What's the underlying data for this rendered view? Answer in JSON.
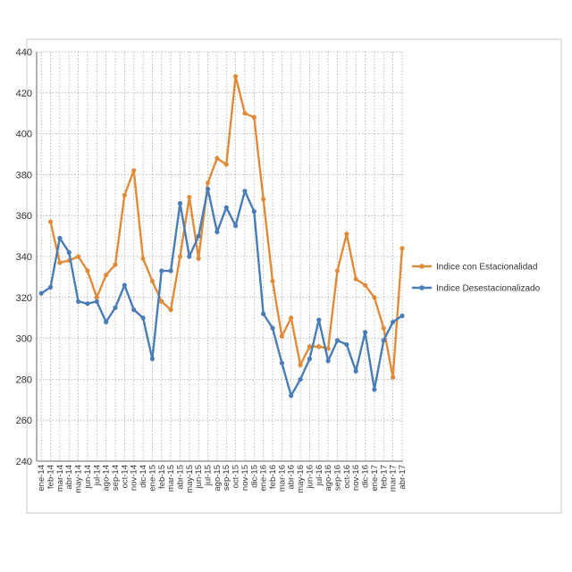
{
  "chart_data": {
    "type": "line",
    "title": "",
    "xlabel": "",
    "ylabel": "",
    "ylim": [
      240,
      440
    ],
    "yticks": [
      240,
      260,
      280,
      300,
      320,
      340,
      360,
      380,
      400,
      420,
      440
    ],
    "grid": true,
    "legend_position": "right",
    "categories": [
      "ene-14",
      "feb-14",
      "mar-14",
      "abr-14",
      "may-14",
      "jun-14",
      "jul-14",
      "ago-14",
      "sep-14",
      "oct-14",
      "nov-14",
      "dic-14",
      "ene-15",
      "feb-15",
      "mar-15",
      "abr-15",
      "may-15",
      "jun-15",
      "jul-15",
      "ago-15",
      "sep-15",
      "oct-15",
      "nov-15",
      "dic-15",
      "ene-16",
      "feb-16",
      "mar-16",
      "abr-16",
      "may-16",
      "jun-16",
      "jul-16",
      "ago-16",
      "sep-16",
      "oct-16",
      "nov-16",
      "dic-16",
      "ene-17",
      "feb-17",
      "mar-17",
      "abr-17"
    ],
    "series": [
      {
        "name": "Indice con Estacionalidad",
        "color": "#E08B3A",
        "values": [
          null,
          357,
          337,
          338,
          340,
          333,
          320,
          331,
          336,
          370,
          382,
          339,
          328,
          318,
          314,
          340,
          369,
          339,
          376,
          388,
          385,
          428,
          410,
          408,
          368,
          328,
          301,
          310,
          287,
          296,
          296,
          295,
          333,
          351,
          329,
          326,
          320,
          305,
          281,
          344
        ]
      },
      {
        "name": "Indice Desestacionalizado",
        "color": "#4A7DB5",
        "values": [
          322,
          325,
          349,
          342,
          318,
          317,
          318,
          308,
          315,
          326,
          314,
          310,
          290,
          333,
          333,
          366,
          340,
          350,
          373,
          352,
          364,
          355,
          372,
          362,
          312,
          305,
          288,
          272,
          280,
          290,
          309,
          289,
          299,
          297,
          284,
          303,
          275,
          299,
          308,
          311
        ]
      }
    ]
  }
}
